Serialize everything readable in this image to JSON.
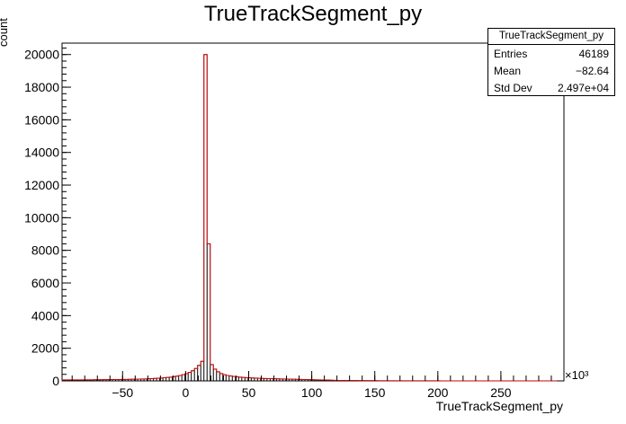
{
  "chart_data": {
    "type": "bar",
    "title": "TrueTrackSegment_py",
    "xlabel": "TrueTrackSegment_py",
    "ylabel": "count",
    "x_multiplier": "×10³",
    "xlim": [
      -98,
      300
    ],
    "ylim": [
      0,
      20700
    ],
    "xticks": [
      -50,
      0,
      50,
      100,
      150,
      200,
      250
    ],
    "xtick_labels": [
      "−50",
      "0",
      "50",
      "100",
      "150",
      "200",
      "250"
    ],
    "yticks": [
      0,
      2000,
      4000,
      6000,
      8000,
      10000,
      12000,
      14000,
      16000,
      18000,
      20000
    ],
    "bin_width": 2.5,
    "bin_edges_start": -98,
    "values": [
      60,
      60,
      60,
      60,
      60,
      60,
      60,
      65,
      65,
      65,
      70,
      70,
      70,
      75,
      75,
      80,
      80,
      85,
      85,
      90,
      90,
      95,
      100,
      105,
      110,
      115,
      120,
      130,
      140,
      150,
      160,
      175,
      190,
      210,
      230,
      260,
      290,
      330,
      380,
      440,
      520,
      620,
      760,
      950,
      1200,
      20000,
      8400,
      1000,
      720,
      560,
      450,
      380,
      330,
      300,
      270,
      250,
      230,
      210,
      200,
      190,
      180,
      170,
      160,
      150,
      145,
      140,
      135,
      130,
      125,
      120,
      115,
      110,
      105,
      100,
      95,
      90,
      85,
      80,
      75,
      70,
      65,
      60,
      55,
      50,
      45,
      40,
      35,
      30,
      28,
      26,
      24,
      22,
      20,
      18,
      16,
      15,
      14,
      13,
      12,
      11,
      10,
      10,
      9,
      9,
      8,
      8,
      7,
      7,
      6,
      6,
      6,
      5,
      5,
      5,
      5,
      4,
      4,
      4,
      4,
      4,
      3,
      3,
      3,
      3,
      3,
      3,
      3,
      3,
      3,
      3,
      3,
      3,
      3,
      3,
      3,
      3,
      3,
      3,
      3,
      3,
      3,
      3,
      3,
      3,
      3,
      3,
      3,
      3,
      3,
      3,
      3,
      3,
      3,
      3,
      3,
      3,
      3
    ],
    "series": [
      {
        "name": "",
        "color": "#000000"
      },
      {
        "name": "",
        "color": "#cc0000"
      }
    ],
    "grid": false,
    "legend": "none"
  },
  "stats_box": {
    "title": "TrueTrackSegment_py",
    "rows": [
      {
        "label": "Entries",
        "value": "46189"
      },
      {
        "label": "Mean",
        "value": "−82.64"
      },
      {
        "label": "Std Dev",
        "value": "2.497e+04"
      }
    ]
  }
}
